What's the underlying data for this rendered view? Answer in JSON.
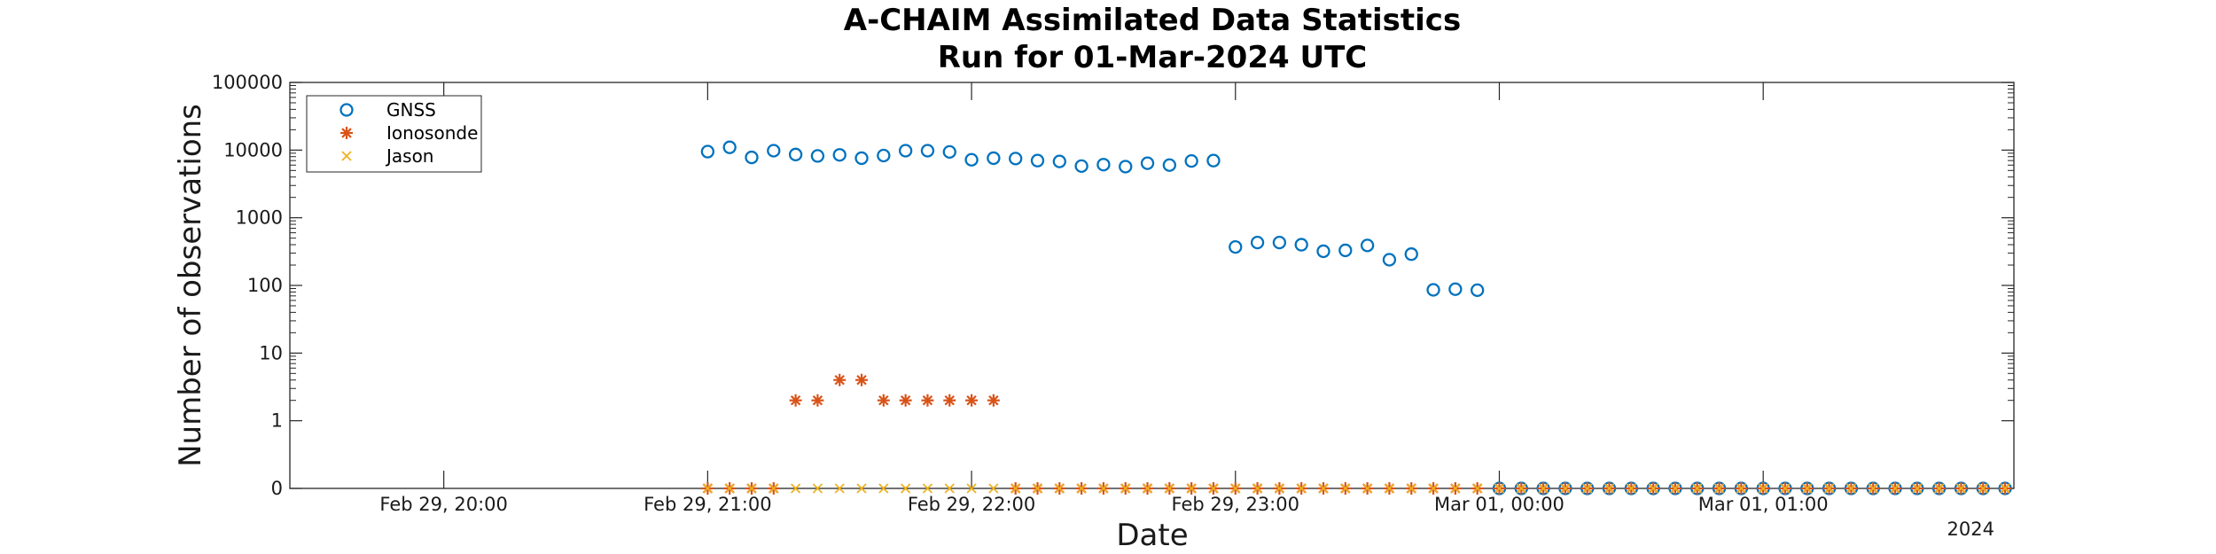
{
  "chart_data": {
    "type": "scatter",
    "title_lines": [
      "A-CHAIM Assimilated Data Statistics",
      "Run for 01-Mar-2024 UTC"
    ],
    "xlabel": "Date",
    "ylabel": "Number of observations",
    "x_year_label": "2024",
    "y_scale": "log (with zero shown at bottom)",
    "y_tick_labels": [
      "0",
      "1",
      "10",
      "100",
      "1000",
      "10000",
      "100000"
    ],
    "x_tick_labels": [
      "Feb 29, 20:00",
      "Feb 29, 21:00",
      "Feb 29, 22:00",
      "Feb 29, 23:00",
      "Mar 01, 00:00",
      "Mar 01, 01:00"
    ],
    "x_range": [
      "Feb 29, 19:25",
      "Mar 01, 01:57"
    ],
    "grid": false,
    "legend_position": "top-left",
    "series": [
      {
        "name": "GNSS",
        "marker": "circle",
        "color": "#0072BD",
        "points": [
          [
            "Feb 29, 21:00",
            9500
          ],
          [
            "Feb 29, 21:05",
            11000
          ],
          [
            "Feb 29, 21:10",
            7800
          ],
          [
            "Feb 29, 21:15",
            9800
          ],
          [
            "Feb 29, 21:20",
            8600
          ],
          [
            "Feb 29, 21:25",
            8200
          ],
          [
            "Feb 29, 21:30",
            8500
          ],
          [
            "Feb 29, 21:35",
            7600
          ],
          [
            "Feb 29, 21:40",
            8300
          ],
          [
            "Feb 29, 21:45",
            9800
          ],
          [
            "Feb 29, 21:50",
            9800
          ],
          [
            "Feb 29, 21:55",
            9400
          ],
          [
            "Feb 29, 22:00",
            7200
          ],
          [
            "Feb 29, 22:05",
            7600
          ],
          [
            "Feb 29, 22:10",
            7500
          ],
          [
            "Feb 29, 22:15",
            7000
          ],
          [
            "Feb 29, 22:20",
            6800
          ],
          [
            "Feb 29, 22:25",
            5800
          ],
          [
            "Feb 29, 22:30",
            6100
          ],
          [
            "Feb 29, 22:35",
            5700
          ],
          [
            "Feb 29, 22:40",
            6400
          ],
          [
            "Feb 29, 22:45",
            6000
          ],
          [
            "Feb 29, 22:50",
            6900
          ],
          [
            "Feb 29, 22:55",
            7000
          ],
          [
            "Feb 29, 23:00",
            370
          ],
          [
            "Feb 29, 23:05",
            430
          ],
          [
            "Feb 29, 23:10",
            430
          ],
          [
            "Feb 29, 23:15",
            400
          ],
          [
            "Feb 29, 23:20",
            320
          ],
          [
            "Feb 29, 23:25",
            330
          ],
          [
            "Feb 29, 23:30",
            390
          ],
          [
            "Feb 29, 23:35",
            240
          ],
          [
            "Feb 29, 23:40",
            290
          ],
          [
            "Feb 29, 23:45",
            86
          ],
          [
            "Feb 29, 23:50",
            88
          ],
          [
            "Feb 29, 23:55",
            85
          ],
          [
            "Mar 01, 00:00",
            0
          ],
          [
            "Mar 01, 00:05",
            0
          ],
          [
            "Mar 01, 00:10",
            0
          ],
          [
            "Mar 01, 00:15",
            0
          ],
          [
            "Mar 01, 00:20",
            0
          ],
          [
            "Mar 01, 00:25",
            0
          ],
          [
            "Mar 01, 00:30",
            0
          ],
          [
            "Mar 01, 00:35",
            0
          ],
          [
            "Mar 01, 00:40",
            0
          ],
          [
            "Mar 01, 00:45",
            0
          ],
          [
            "Mar 01, 00:50",
            0
          ],
          [
            "Mar 01, 00:55",
            0
          ],
          [
            "Mar 01, 01:00",
            0
          ],
          [
            "Mar 01, 01:05",
            0
          ],
          [
            "Mar 01, 01:10",
            0
          ],
          [
            "Mar 01, 01:15",
            0
          ],
          [
            "Mar 01, 01:20",
            0
          ],
          [
            "Mar 01, 01:25",
            0
          ],
          [
            "Mar 01, 01:30",
            0
          ],
          [
            "Mar 01, 01:35",
            0
          ],
          [
            "Mar 01, 01:40",
            0
          ],
          [
            "Mar 01, 01:45",
            0
          ],
          [
            "Mar 01, 01:50",
            0
          ],
          [
            "Mar 01, 01:55",
            0
          ]
        ]
      },
      {
        "name": "Ionosonde",
        "marker": "asterisk",
        "color": "#D95319",
        "points": [
          [
            "Feb 29, 21:00",
            0
          ],
          [
            "Feb 29, 21:05",
            0
          ],
          [
            "Feb 29, 21:10",
            0
          ],
          [
            "Feb 29, 21:15",
            0
          ],
          [
            "Feb 29, 21:20",
            2
          ],
          [
            "Feb 29, 21:25",
            2
          ],
          [
            "Feb 29, 21:30",
            4
          ],
          [
            "Feb 29, 21:35",
            4
          ],
          [
            "Feb 29, 21:40",
            2
          ],
          [
            "Feb 29, 21:45",
            2
          ],
          [
            "Feb 29, 21:50",
            2
          ],
          [
            "Feb 29, 21:55",
            2
          ],
          [
            "Feb 29, 22:00",
            2
          ],
          [
            "Feb 29, 22:05",
            2
          ],
          [
            "Feb 29, 22:10",
            0
          ],
          [
            "Feb 29, 22:15",
            0
          ],
          [
            "Feb 29, 22:20",
            0
          ],
          [
            "Feb 29, 22:25",
            0
          ],
          [
            "Feb 29, 22:30",
            0
          ],
          [
            "Feb 29, 22:35",
            0
          ],
          [
            "Feb 29, 22:40",
            0
          ],
          [
            "Feb 29, 22:45",
            0
          ],
          [
            "Feb 29, 22:50",
            0
          ],
          [
            "Feb 29, 22:55",
            0
          ],
          [
            "Feb 29, 23:00",
            0
          ],
          [
            "Feb 29, 23:05",
            0
          ],
          [
            "Feb 29, 23:10",
            0
          ],
          [
            "Feb 29, 23:15",
            0
          ],
          [
            "Feb 29, 23:20",
            0
          ],
          [
            "Feb 29, 23:25",
            0
          ],
          [
            "Feb 29, 23:30",
            0
          ],
          [
            "Feb 29, 23:35",
            0
          ],
          [
            "Feb 29, 23:40",
            0
          ],
          [
            "Feb 29, 23:45",
            0
          ],
          [
            "Feb 29, 23:50",
            0
          ],
          [
            "Feb 29, 23:55",
            0
          ],
          [
            "Mar 01, 00:00",
            0
          ],
          [
            "Mar 01, 00:05",
            0
          ],
          [
            "Mar 01, 00:10",
            0
          ],
          [
            "Mar 01, 00:15",
            0
          ],
          [
            "Mar 01, 00:20",
            0
          ],
          [
            "Mar 01, 00:25",
            0
          ],
          [
            "Mar 01, 00:30",
            0
          ],
          [
            "Mar 01, 00:35",
            0
          ],
          [
            "Mar 01, 00:40",
            0
          ],
          [
            "Mar 01, 00:45",
            0
          ],
          [
            "Mar 01, 00:50",
            0
          ],
          [
            "Mar 01, 00:55",
            0
          ],
          [
            "Mar 01, 01:00",
            0
          ],
          [
            "Mar 01, 01:05",
            0
          ],
          [
            "Mar 01, 01:10",
            0
          ],
          [
            "Mar 01, 01:15",
            0
          ],
          [
            "Mar 01, 01:20",
            0
          ],
          [
            "Mar 01, 01:25",
            0
          ],
          [
            "Mar 01, 01:30",
            0
          ],
          [
            "Mar 01, 01:35",
            0
          ],
          [
            "Mar 01, 01:40",
            0
          ],
          [
            "Mar 01, 01:45",
            0
          ],
          [
            "Mar 01, 01:50",
            0
          ],
          [
            "Mar 01, 01:55",
            0
          ]
        ]
      },
      {
        "name": "Jason",
        "marker": "x",
        "color": "#EDB120",
        "points": [
          [
            "Feb 29, 21:00",
            0
          ],
          [
            "Feb 29, 21:05",
            0
          ],
          [
            "Feb 29, 21:10",
            0
          ],
          [
            "Feb 29, 21:15",
            0
          ],
          [
            "Feb 29, 21:20",
            0
          ],
          [
            "Feb 29, 21:25",
            0
          ],
          [
            "Feb 29, 21:30",
            0
          ],
          [
            "Feb 29, 21:35",
            0
          ],
          [
            "Feb 29, 21:40",
            0
          ],
          [
            "Feb 29, 21:45",
            0
          ],
          [
            "Feb 29, 21:50",
            0
          ],
          [
            "Feb 29, 21:55",
            0
          ],
          [
            "Feb 29, 22:00",
            0
          ],
          [
            "Feb 29, 22:05",
            0
          ],
          [
            "Feb 29, 22:10",
            0
          ],
          [
            "Feb 29, 22:15",
            0
          ],
          [
            "Feb 29, 22:20",
            0
          ],
          [
            "Feb 29, 22:25",
            0
          ],
          [
            "Feb 29, 22:30",
            0
          ],
          [
            "Feb 29, 22:35",
            0
          ],
          [
            "Feb 29, 22:40",
            0
          ],
          [
            "Feb 29, 22:45",
            0
          ],
          [
            "Feb 29, 22:50",
            0
          ],
          [
            "Feb 29, 22:55",
            0
          ],
          [
            "Feb 29, 23:00",
            0
          ],
          [
            "Feb 29, 23:05",
            0
          ],
          [
            "Feb 29, 23:10",
            0
          ],
          [
            "Feb 29, 23:15",
            0
          ],
          [
            "Feb 29, 23:20",
            0
          ],
          [
            "Feb 29, 23:25",
            0
          ],
          [
            "Feb 29, 23:30",
            0
          ],
          [
            "Feb 29, 23:35",
            0
          ],
          [
            "Feb 29, 23:40",
            0
          ],
          [
            "Feb 29, 23:45",
            0
          ],
          [
            "Feb 29, 23:50",
            0
          ],
          [
            "Feb 29, 23:55",
            0
          ],
          [
            "Mar 01, 00:00",
            0
          ],
          [
            "Mar 01, 00:05",
            0
          ],
          [
            "Mar 01, 00:10",
            0
          ],
          [
            "Mar 01, 00:15",
            0
          ],
          [
            "Mar 01, 00:20",
            0
          ],
          [
            "Mar 01, 00:25",
            0
          ],
          [
            "Mar 01, 00:30",
            0
          ],
          [
            "Mar 01, 00:35",
            0
          ],
          [
            "Mar 01, 00:40",
            0
          ],
          [
            "Mar 01, 00:45",
            0
          ],
          [
            "Mar 01, 00:50",
            0
          ],
          [
            "Mar 01, 00:55",
            0
          ],
          [
            "Mar 01, 01:00",
            0
          ],
          [
            "Mar 01, 01:05",
            0
          ],
          [
            "Mar 01, 01:10",
            0
          ],
          [
            "Mar 01, 01:15",
            0
          ],
          [
            "Mar 01, 01:20",
            0
          ],
          [
            "Mar 01, 01:25",
            0
          ],
          [
            "Mar 01, 01:30",
            0
          ],
          [
            "Mar 01, 01:35",
            0
          ],
          [
            "Mar 01, 01:40",
            0
          ],
          [
            "Mar 01, 01:45",
            0
          ],
          [
            "Mar 01, 01:50",
            0
          ],
          [
            "Mar 01, 01:55",
            0
          ]
        ]
      }
    ]
  }
}
